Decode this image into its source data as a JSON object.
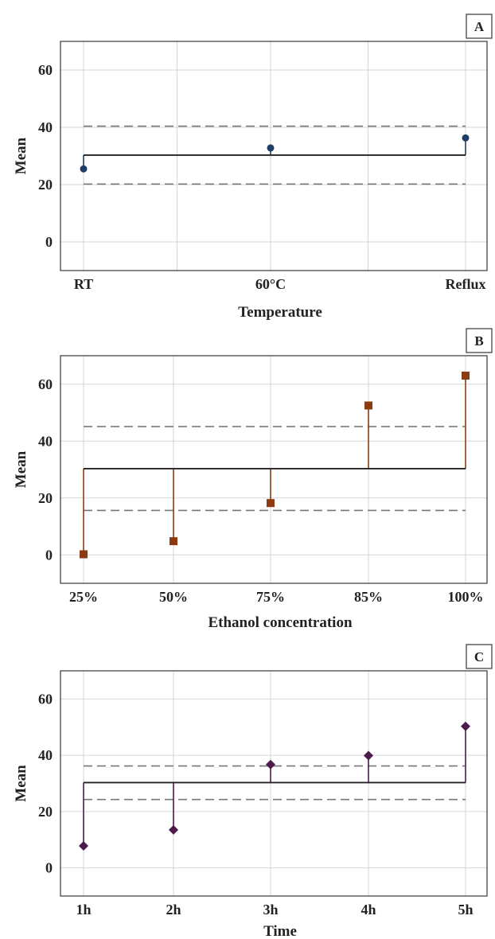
{
  "chart_data": [
    {
      "type": "scatter",
      "panel_label": "A",
      "xlabel": "Temperature",
      "ylabel": "Mean",
      "categories": [
        "RT",
        "60°C",
        "Reflux"
      ],
      "values": [
        25.5,
        32.8,
        36.3
      ],
      "center_line": 30.3,
      "upper_limit": 40.4,
      "lower_limit": 20.2,
      "yticks": [
        0,
        20,
        40,
        60
      ],
      "ylim": [
        -10,
        70
      ],
      "marker": "circle",
      "color": "#1f3d63",
      "grid": true
    },
    {
      "type": "scatter",
      "panel_label": "B",
      "xlabel": "Ethanol concentration",
      "ylabel": "Mean",
      "categories": [
        "25%",
        "50%",
        "75%",
        "85%",
        "100%"
      ],
      "values": [
        0.2,
        4.8,
        18.2,
        52.5,
        63
      ],
      "center_line": 30.3,
      "upper_limit": 45.1,
      "lower_limit": 15.6,
      "yticks": [
        0,
        20,
        40,
        60
      ],
      "ylim": [
        -10,
        70
      ],
      "marker": "square",
      "color": "#8b3a12",
      "grid": true
    },
    {
      "type": "scatter",
      "panel_label": "C",
      "xlabel": "Time",
      "ylabel": "Mean",
      "categories": [
        "1h",
        "2h",
        "3h",
        "4h",
        "5h"
      ],
      "values": [
        7.8,
        13.5,
        36.7,
        39.9,
        50.3
      ],
      "center_line": 30.3,
      "upper_limit": 36.2,
      "lower_limit": 24.3,
      "yticks": [
        0,
        20,
        40,
        60
      ],
      "ylim": [
        -10,
        70
      ],
      "marker": "diamond",
      "color": "#4d1a4b",
      "grid": true
    }
  ],
  "colors": {
    "center_line": "#222222",
    "limit_line": "#777777",
    "grid": "#d6d6d6",
    "frame": "#444444"
  }
}
